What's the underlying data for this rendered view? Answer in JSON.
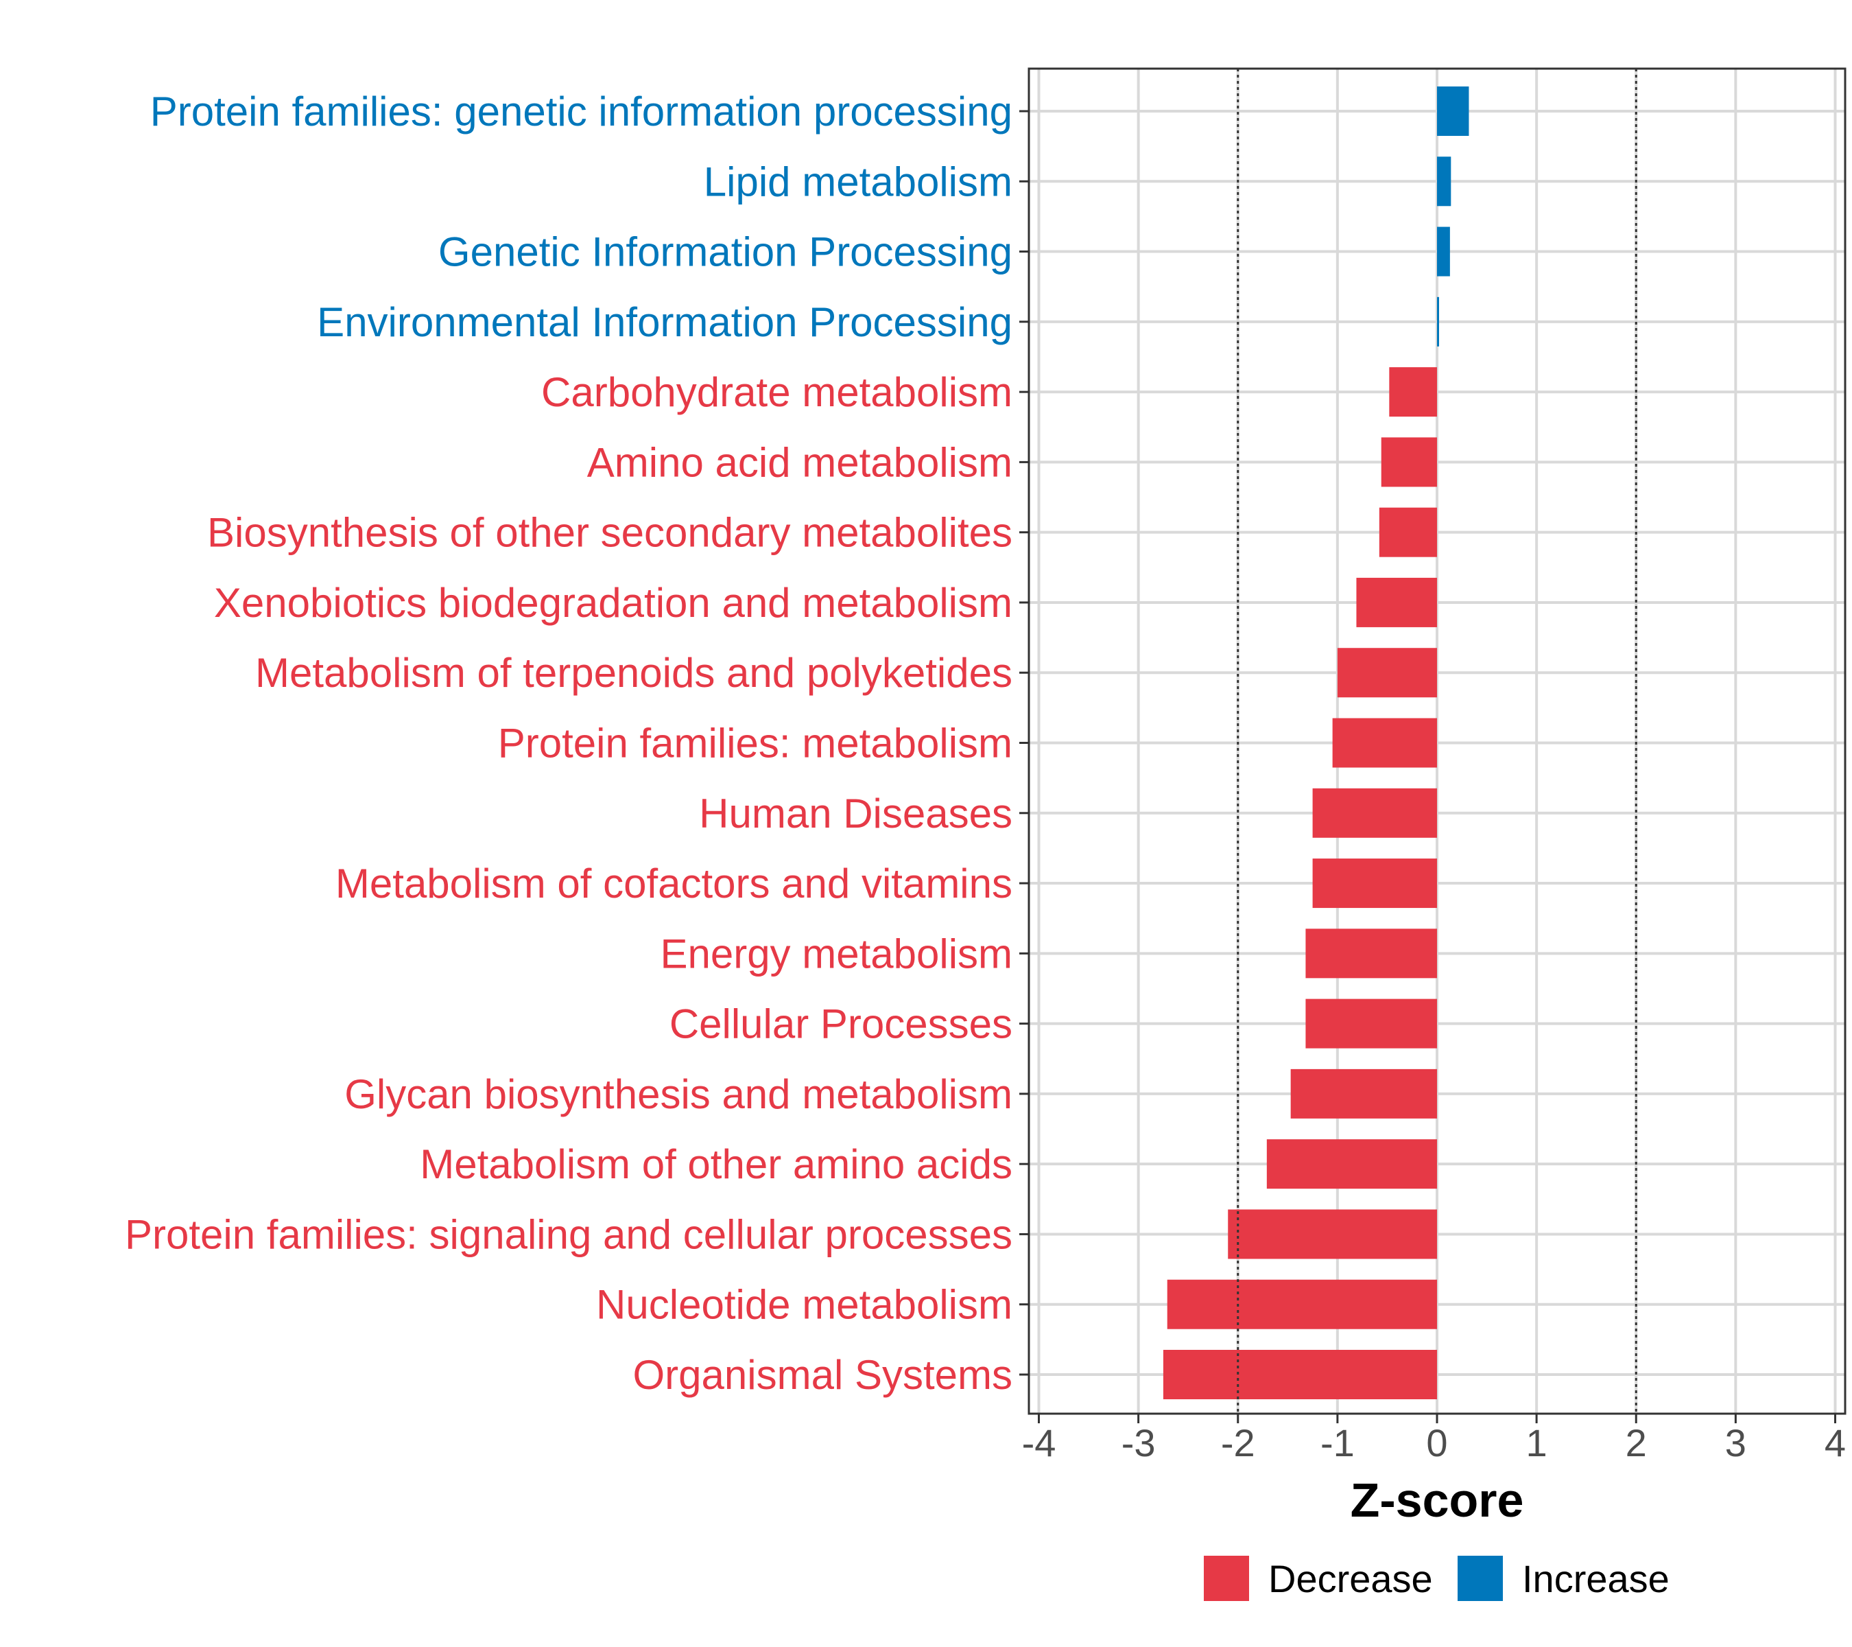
{
  "chart_data": {
    "type": "bar",
    "orientation": "horizontal",
    "xlabel": "Z-score",
    "xlim": [
      -4.1,
      4.1
    ],
    "x_ticks": [
      -4,
      -3,
      -2,
      -1,
      0,
      1,
      2,
      3,
      4
    ],
    "x_tick_labels": [
      "-4",
      "-3",
      "-2",
      "-1",
      "0",
      "1",
      "2",
      "3",
      "4"
    ],
    "reference_lines": [
      -2,
      2
    ],
    "grid": true,
    "categories": [
      "Protein families: genetic information processing",
      "Lipid metabolism",
      "Genetic Information Processing",
      "Environmental Information Processing",
      "Carbohydrate metabolism",
      "Amino acid metabolism",
      "Biosynthesis of other secondary metabolites",
      "Xenobiotics biodegradation and metabolism",
      "Metabolism of terpenoids and polyketides",
      "Protein families: metabolism",
      "Human Diseases",
      "Metabolism of cofactors and vitamins",
      "Energy metabolism",
      "Cellular Processes",
      "Glycan biosynthesis and metabolism",
      "Metabolism of other amino acids",
      "Protein families: signaling and cellular processes",
      "Nucleotide metabolism",
      "Organismal Systems"
    ],
    "values": [
      0.32,
      0.14,
      0.13,
      0.02,
      -0.48,
      -0.56,
      -0.58,
      -0.81,
      -1.0,
      -1.05,
      -1.25,
      -1.25,
      -1.32,
      -1.32,
      -1.47,
      -1.71,
      -2.1,
      -2.71,
      -2.75
    ],
    "groups": [
      "Increase",
      "Increase",
      "Increase",
      "Increase",
      "Decrease",
      "Decrease",
      "Decrease",
      "Decrease",
      "Decrease",
      "Decrease",
      "Decrease",
      "Decrease",
      "Decrease",
      "Decrease",
      "Decrease",
      "Decrease",
      "Decrease",
      "Decrease",
      "Decrease"
    ],
    "legend": {
      "position": "bottom",
      "entries": [
        {
          "label": "Decrease",
          "color": "#E63946"
        },
        {
          "label": "Increase",
          "color": "#0077BB"
        }
      ]
    }
  }
}
